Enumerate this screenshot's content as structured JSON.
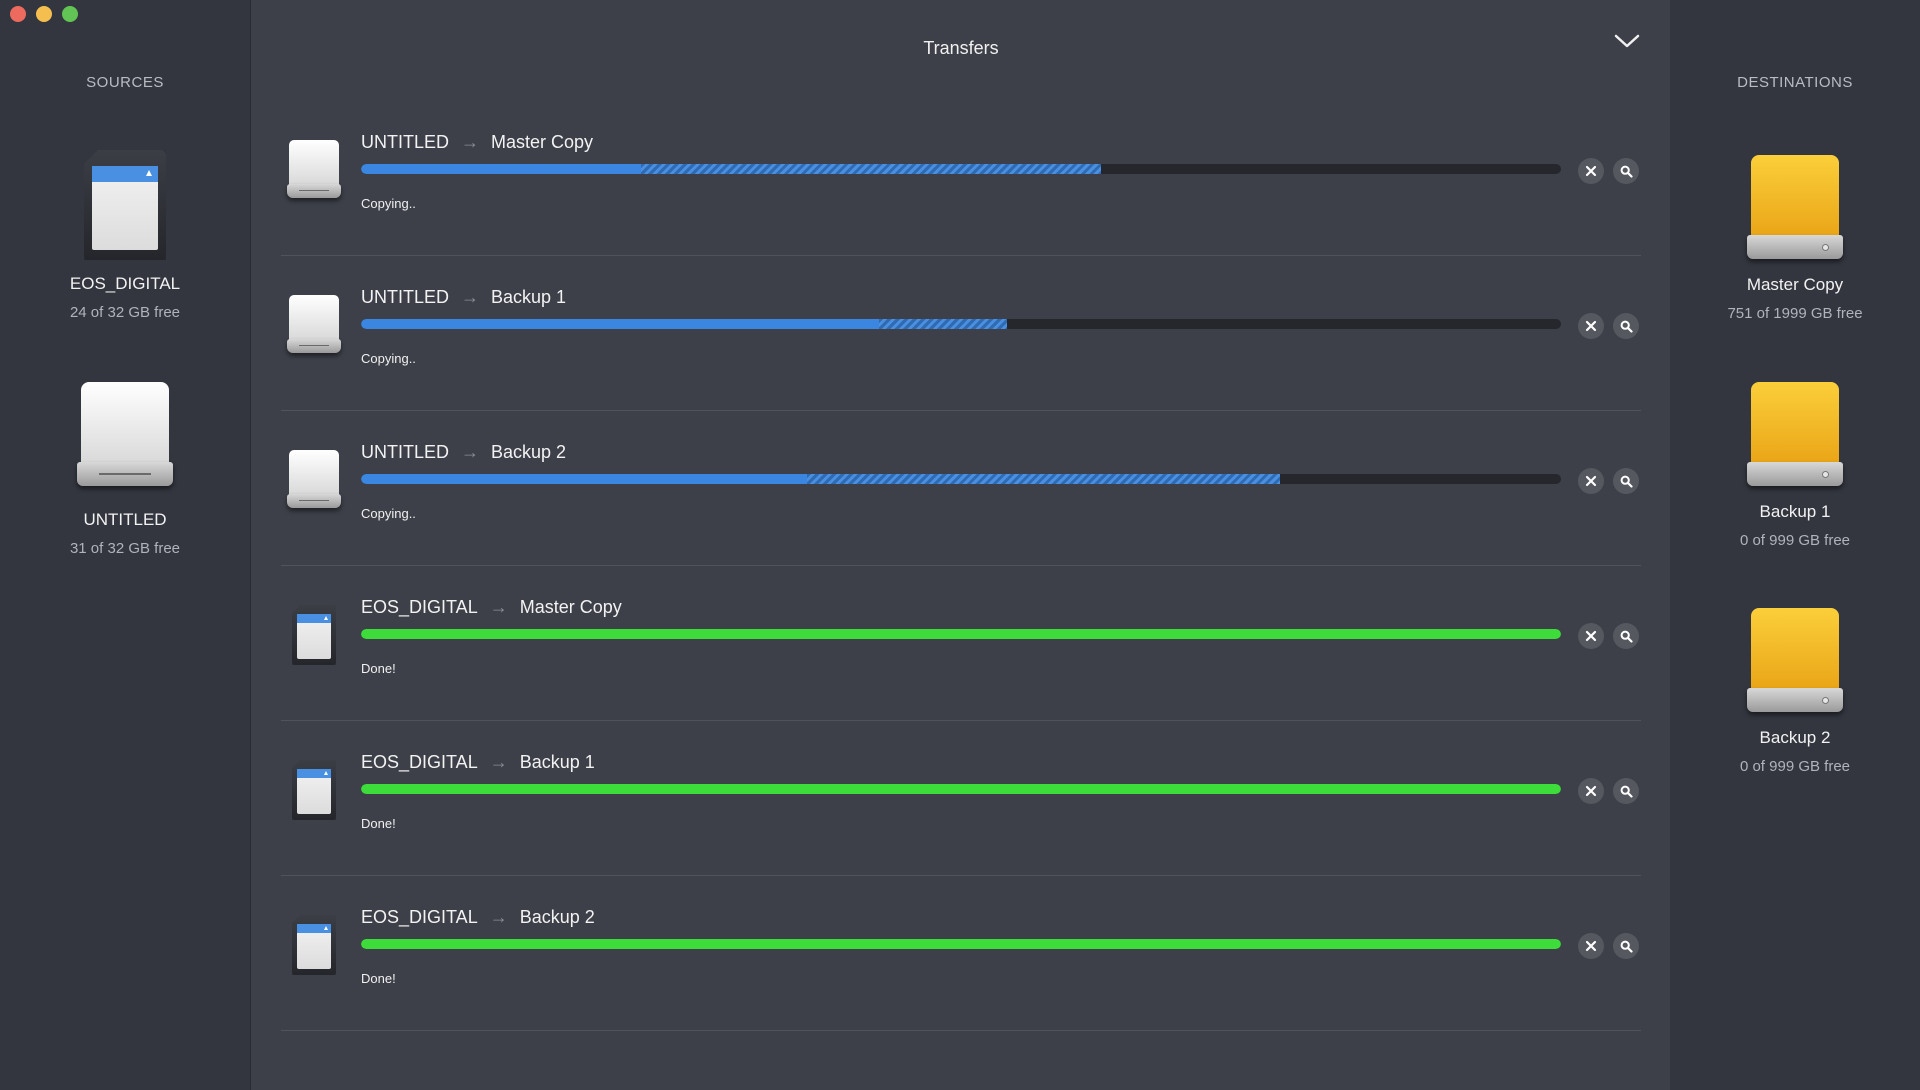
{
  "window": {
    "title": "Transfers"
  },
  "sources": {
    "header": "SOURCES",
    "items": [
      {
        "name": "EOS_DIGITAL",
        "free": "24 of 32 GB free",
        "icon": "sd-card-icon"
      },
      {
        "name": "UNTITLED",
        "free": "31 of 32 GB free",
        "icon": "white-drive-icon"
      }
    ]
  },
  "destinations": {
    "header": "DESTINATIONS",
    "items": [
      {
        "name": "Master Copy",
        "free": "751 of 1999 GB free",
        "icon": "yellow-drive-icon"
      },
      {
        "name": "Backup 1",
        "free": "0 of 999 GB free",
        "icon": "yellow-drive-icon"
      },
      {
        "name": "Backup 2",
        "free": "0 of 999 GB free",
        "icon": "yellow-drive-icon"
      }
    ]
  },
  "transfers": [
    {
      "source": "UNTITLED",
      "destination": "Master Copy",
      "status": "Copying..",
      "state": "copying",
      "progress_done": 0.233,
      "progress_queued": 0.617,
      "icon": "white-drive-icon"
    },
    {
      "source": "UNTITLED",
      "destination": "Backup 1",
      "status": "Copying..",
      "state": "copying",
      "progress_done": 0.432,
      "progress_queued": 0.538,
      "icon": "white-drive-icon"
    },
    {
      "source": "UNTITLED",
      "destination": "Backup 2",
      "status": "Copying..",
      "state": "copying",
      "progress_done": 0.372,
      "progress_queued": 0.766,
      "icon": "white-drive-icon"
    },
    {
      "source": "EOS_DIGITAL",
      "destination": "Master Copy",
      "status": "Done!",
      "state": "done",
      "progress_done": 1.0,
      "progress_queued": 1.0,
      "icon": "sd-card-icon"
    },
    {
      "source": "EOS_DIGITAL",
      "destination": "Backup 1",
      "status": "Done!",
      "state": "done",
      "progress_done": 1.0,
      "progress_queued": 1.0,
      "icon": "sd-card-icon"
    },
    {
      "source": "EOS_DIGITAL",
      "destination": "Backup 2",
      "status": "Done!",
      "state": "done",
      "progress_done": 1.0,
      "progress_queued": 1.0,
      "icon": "sd-card-icon"
    }
  ],
  "colors": {
    "progress_blue": "#3a86e0",
    "progress_green": "#3ddc3a",
    "drive_yellow": "#fbcf3a"
  }
}
